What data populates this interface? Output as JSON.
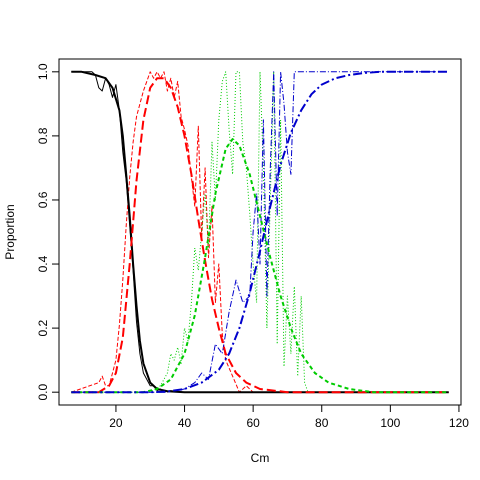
{
  "chart_data": {
    "type": "line",
    "title": "",
    "xlabel": "Cm",
    "ylabel": "Proportion",
    "xlim": [
      3.4,
      120.6
    ],
    "ylim": [
      -0.04,
      1.04
    ],
    "x_ticks": [
      20,
      40,
      60,
      80,
      100,
      120
    ],
    "y_ticks": [
      0.0,
      0.2,
      0.4,
      0.6,
      0.8,
      1.0
    ],
    "grid": false,
    "legend": "none",
    "fitted": [
      {
        "color": "#000000",
        "dash": "solid",
        "x": [
          7,
          10,
          14,
          17,
          19,
          21,
          22,
          23,
          24,
          25,
          26,
          27,
          28,
          30,
          32,
          35,
          40,
          117
        ],
        "y": [
          1.0,
          1.0,
          0.99,
          0.98,
          0.95,
          0.88,
          0.8,
          0.68,
          0.55,
          0.4,
          0.27,
          0.16,
          0.09,
          0.03,
          0.01,
          0.003,
          0.0,
          0.0
        ]
      },
      {
        "color": "#ff0000",
        "dash": "long-dash",
        "x": [
          7,
          15,
          18,
          20,
          22,
          24,
          26,
          28,
          30,
          32,
          34,
          36,
          38,
          40,
          42,
          44,
          46,
          48,
          50,
          52,
          55,
          58,
          62,
          70,
          117
        ],
        "y": [
          0.0,
          0.0,
          0.02,
          0.06,
          0.17,
          0.4,
          0.66,
          0.85,
          0.95,
          0.98,
          0.98,
          0.95,
          0.89,
          0.8,
          0.68,
          0.54,
          0.41,
          0.29,
          0.2,
          0.12,
          0.06,
          0.03,
          0.01,
          0.0,
          0.0
        ]
      },
      {
        "color": "#00cc00",
        "dash": "short-dash",
        "x": [
          7,
          28,
          32,
          36,
          40,
          43,
          46,
          49,
          52,
          54,
          56,
          59,
          62,
          65,
          68,
          71,
          74,
          78,
          82,
          88,
          95,
          117
        ],
        "y": [
          0.0,
          0.0,
          0.01,
          0.04,
          0.12,
          0.24,
          0.42,
          0.62,
          0.76,
          0.79,
          0.77,
          0.68,
          0.55,
          0.42,
          0.3,
          0.2,
          0.12,
          0.06,
          0.03,
          0.01,
          0.0,
          0.0
        ]
      },
      {
        "color": "#0000cc",
        "dash": "dash-dot",
        "x": [
          7,
          30,
          35,
          40,
          45,
          50,
          53,
          56,
          59,
          62,
          65,
          68,
          71,
          74,
          77,
          80,
          84,
          88,
          92,
          97,
          105,
          117
        ],
        "y": [
          0.0,
          0.0,
          0.002,
          0.01,
          0.03,
          0.07,
          0.12,
          0.2,
          0.31,
          0.44,
          0.58,
          0.71,
          0.81,
          0.88,
          0.93,
          0.96,
          0.98,
          0.99,
          0.996,
          1.0,
          1.0,
          1.0
        ]
      }
    ],
    "observed": [
      {
        "color": "#000000",
        "dash": "thin-solid",
        "x": [
          7,
          13,
          14,
          15,
          16,
          17,
          18,
          19,
          20,
          21,
          22,
          23,
          24,
          25,
          26,
          27,
          28,
          29,
          30,
          31,
          32,
          33,
          34,
          36,
          40,
          117
        ],
        "y": [
          1.0,
          1.0,
          0.99,
          0.95,
          0.94,
          0.98,
          0.96,
          0.92,
          0.96,
          0.88,
          0.75,
          0.66,
          0.52,
          0.38,
          0.22,
          0.12,
          0.06,
          0.04,
          0.02,
          0.02,
          0.005,
          0.01,
          0.0,
          0.005,
          0.0,
          0.0
        ]
      },
      {
        "color": "#ff0000",
        "dash": "thin-dash",
        "x": [
          7,
          15,
          16,
          17,
          18,
          19,
          20,
          21,
          22,
          23,
          24,
          25,
          26,
          27,
          28,
          29,
          30,
          31,
          32,
          33,
          34,
          35,
          36,
          37,
          38,
          39,
          40,
          41,
          42,
          43,
          44,
          45,
          46,
          47,
          48,
          49,
          50,
          51,
          52,
          54,
          56,
          58,
          60,
          117
        ],
        "y": [
          0.0,
          0.03,
          0.05,
          0.02,
          0.02,
          0.06,
          0.1,
          0.21,
          0.35,
          0.52,
          0.67,
          0.78,
          0.86,
          0.9,
          0.94,
          0.97,
          1.0,
          0.98,
          1.0,
          0.98,
          1.0,
          0.94,
          0.98,
          0.92,
          0.97,
          0.86,
          0.82,
          0.77,
          0.67,
          0.58,
          0.83,
          0.48,
          0.7,
          0.42,
          0.58,
          0.28,
          0.4,
          0.18,
          0.1,
          0.05,
          0.0,
          0.02,
          0.0,
          0.0
        ]
      },
      {
        "color": "#00cc00",
        "dash": "dotted",
        "x": [
          7,
          30,
          33,
          35,
          36,
          37,
          38,
          39,
          40,
          41,
          42,
          43,
          44,
          45,
          46,
          47,
          48,
          49,
          50,
          51,
          52,
          53,
          54,
          55,
          56,
          57,
          58,
          59,
          60,
          61,
          62,
          63,
          64,
          65,
          66,
          67,
          68,
          69,
          70,
          71,
          72,
          73,
          74,
          75,
          76,
          117
        ],
        "y": [
          0.0,
          0.0,
          0.02,
          0.06,
          0.12,
          0.1,
          0.14,
          0.09,
          0.2,
          0.16,
          0.28,
          0.45,
          0.38,
          0.5,
          0.62,
          0.45,
          0.78,
          0.6,
          0.85,
          0.97,
          1.0,
          0.82,
          0.68,
          1.0,
          1.0,
          0.78,
          0.7,
          0.56,
          0.4,
          0.28,
          1.0,
          0.7,
          0.2,
          0.6,
          1.0,
          0.15,
          0.85,
          0.08,
          0.3,
          0.12,
          0.33,
          0.05,
          0.3,
          0.03,
          0.0,
          0.0
        ]
      },
      {
        "color": "#0000cc",
        "dash": "thin-dash-dot",
        "x": [
          7,
          35,
          40,
          43,
          45,
          47,
          49,
          51,
          53,
          55,
          57,
          59,
          60,
          61,
          62,
          63,
          64,
          65,
          66,
          67,
          68,
          69,
          70,
          71,
          72,
          73,
          74,
          75,
          76,
          80,
          85,
          117
        ],
        "y": [
          0.0,
          0.0,
          0.01,
          0.03,
          0.06,
          0.04,
          0.15,
          0.12,
          0.25,
          0.35,
          0.28,
          0.3,
          0.5,
          0.62,
          0.4,
          0.85,
          0.3,
          0.7,
          1.0,
          0.55,
          1.0,
          0.9,
          0.75,
          0.68,
          1.0,
          1.0,
          1.0,
          1.0,
          1.0,
          1.0,
          1.0,
          1.0
        ]
      }
    ]
  }
}
